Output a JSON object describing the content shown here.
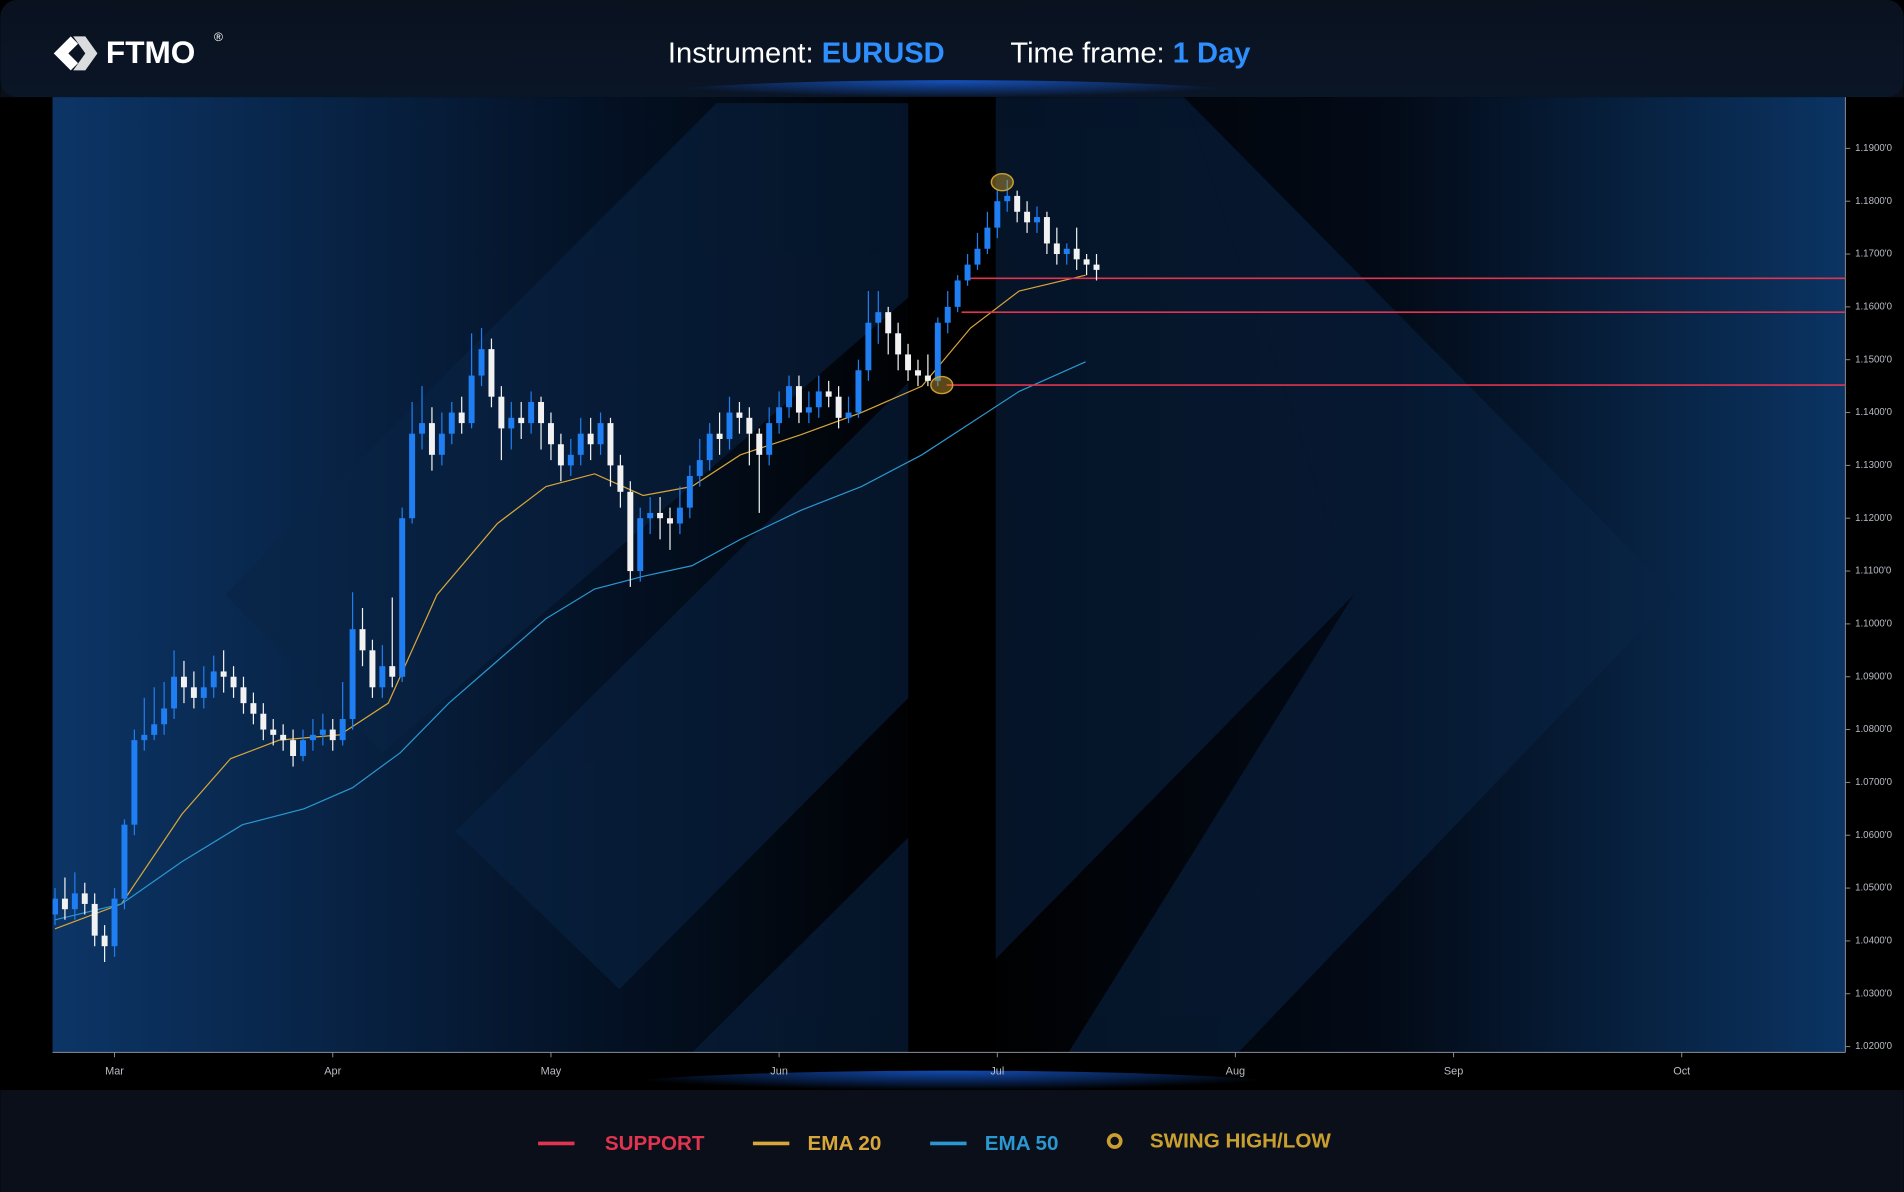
{
  "header": {
    "logo": "FTMO",
    "logo_mark": "®",
    "instrument_label": "Instrument:",
    "instrument": "EURUSD",
    "timeframe_label": "Time frame:",
    "timeframe": "1 Day"
  },
  "chart_data": {
    "type": "candlestick",
    "open": [
      1.045,
      1.048,
      1.046,
      1.049,
      1.047,
      1.041,
      1.039,
      1.048,
      1.062,
      1.078,
      1.079,
      1.081,
      1.084,
      1.09,
      1.088,
      1.086,
      1.088,
      1.091,
      1.09,
      1.088,
      1.085,
      1.083,
      1.08,
      1.079,
      1.078,
      1.075,
      1.078,
      1.079,
      1.08,
      1.078,
      1.082,
      1.099,
      1.095,
      1.088,
      1.092,
      1.09,
      1.12,
      1.136,
      1.138,
      1.132,
      1.136,
      1.14,
      1.138,
      1.147,
      1.152,
      1.143,
      1.137,
      1.139,
      1.138,
      1.142,
      1.138,
      1.134,
      1.13,
      1.132,
      1.136,
      1.134,
      1.138,
      1.13,
      1.125,
      1.11,
      1.12,
      1.121,
      1.12,
      1.119,
      1.122,
      1.128,
      1.131,
      1.136,
      1.135,
      1.14,
      1.139,
      1.136,
      1.132,
      1.138,
      1.141,
      1.145,
      1.14,
      1.141,
      1.144,
      1.143,
      1.139,
      1.14,
      1.148,
      1.157,
      1.159,
      1.155,
      1.151,
      1.148,
      1.147,
      1.146,
      1.157,
      1.16,
      1.165,
      1.168,
      1.171,
      1.175,
      1.18,
      1.181,
      1.178,
      1.176,
      1.177,
      1.172,
      1.17,
      1.171,
      1.169,
      1.168
    ],
    "high": [
      1.05,
      1.052,
      1.053,
      1.051,
      1.049,
      1.043,
      1.05,
      1.063,
      1.08,
      1.086,
      1.088,
      1.089,
      1.095,
      1.093,
      1.091,
      1.092,
      1.094,
      1.095,
      1.092,
      1.09,
      1.087,
      1.085,
      1.082,
      1.081,
      1.08,
      1.08,
      1.082,
      1.083,
      1.082,
      1.089,
      1.106,
      1.103,
      1.097,
      1.096,
      1.105,
      1.122,
      1.142,
      1.145,
      1.141,
      1.14,
      1.142,
      1.143,
      1.155,
      1.156,
      1.154,
      1.145,
      1.142,
      1.142,
      1.144,
      1.143,
      1.14,
      1.136,
      1.135,
      1.139,
      1.139,
      1.14,
      1.139,
      1.132,
      1.127,
      1.122,
      1.124,
      1.124,
      1.122,
      1.126,
      1.13,
      1.135,
      1.138,
      1.14,
      1.143,
      1.142,
      1.141,
      1.137,
      1.141,
      1.144,
      1.147,
      1.147,
      1.144,
      1.147,
      1.146,
      1.145,
      1.143,
      1.15,
      1.163,
      1.163,
      1.16,
      1.157,
      1.153,
      1.15,
      1.151,
      1.158,
      1.163,
      1.166,
      1.17,
      1.174,
      1.178,
      1.182,
      1.184,
      1.182,
      1.18,
      1.179,
      1.178,
      1.175,
      1.172,
      1.175,
      1.17,
      1.17
    ],
    "low": [
      1.043,
      1.044,
      1.044,
      1.045,
      1.039,
      1.036,
      1.037,
      1.046,
      1.06,
      1.076,
      1.078,
      1.079,
      1.082,
      1.085,
      1.084,
      1.084,
      1.086,
      1.087,
      1.086,
      1.083,
      1.081,
      1.078,
      1.077,
      1.076,
      1.073,
      1.074,
      1.076,
      1.077,
      1.076,
      1.077,
      1.08,
      1.092,
      1.086,
      1.086,
      1.088,
      1.089,
      1.119,
      1.133,
      1.129,
      1.13,
      1.134,
      1.136,
      1.137,
      1.145,
      1.141,
      1.131,
      1.133,
      1.135,
      1.136,
      1.133,
      1.131,
      1.127,
      1.128,
      1.13,
      1.131,
      1.132,
      1.126,
      1.122,
      1.107,
      1.108,
      1.117,
      1.116,
      1.114,
      1.117,
      1.12,
      1.126,
      1.129,
      1.132,
      1.133,
      1.136,
      1.13,
      1.121,
      1.13,
      1.136,
      1.139,
      1.138,
      1.138,
      1.139,
      1.141,
      1.137,
      1.138,
      1.139,
      1.146,
      1.153,
      1.151,
      1.148,
      1.146,
      1.145,
      1.145,
      1.145,
      1.155,
      1.159,
      1.164,
      1.167,
      1.17,
      1.173,
      1.178,
      1.176,
      1.174,
      1.174,
      1.17,
      1.168,
      1.168,
      1.167,
      1.166,
      1.165
    ],
    "close": [
      1.048,
      1.046,
      1.049,
      1.047,
      1.041,
      1.039,
      1.048,
      1.062,
      1.078,
      1.079,
      1.081,
      1.084,
      1.09,
      1.088,
      1.086,
      1.088,
      1.091,
      1.09,
      1.088,
      1.085,
      1.083,
      1.08,
      1.079,
      1.078,
      1.075,
      1.078,
      1.079,
      1.08,
      1.078,
      1.082,
      1.099,
      1.095,
      1.088,
      1.092,
      1.09,
      1.12,
      1.136,
      1.138,
      1.132,
      1.136,
      1.14,
      1.138,
      1.147,
      1.152,
      1.143,
      1.137,
      1.139,
      1.138,
      1.142,
      1.138,
      1.134,
      1.13,
      1.132,
      1.136,
      1.134,
      1.138,
      1.13,
      1.125,
      1.11,
      1.12,
      1.121,
      1.12,
      1.119,
      1.122,
      1.128,
      1.131,
      1.136,
      1.135,
      1.14,
      1.139,
      1.136,
      1.132,
      1.138,
      1.141,
      1.145,
      1.14,
      1.141,
      1.144,
      1.143,
      1.139,
      1.14,
      1.148,
      1.157,
      1.159,
      1.155,
      1.151,
      1.148,
      1.147,
      1.146,
      1.157,
      1.16,
      1.165,
      1.168,
      1.171,
      1.175,
      1.18,
      1.181,
      1.178,
      1.176,
      1.177,
      1.172,
      1.17,
      1.171,
      1.169,
      1.168,
      1.167
    ],
    "up_color": "#1f7ff2",
    "down_color": "#f2f2f2",
    "series": [
      {
        "name": "EMA 20",
        "color": "#d8a63a",
        "x": [
          0,
          6.7,
          12.8,
          17.7,
          22.6,
          28.7,
          33.6,
          38.5,
          44.6,
          49.5,
          54.4,
          59.3,
          64.2,
          69.1,
          75.2,
          81.3,
          87.4,
          92.3,
          97.2,
          103.9
        ],
        "values": [
          1.0423,
          1.047,
          1.064,
          1.0745,
          1.078,
          1.079,
          1.085,
          1.1055,
          1.119,
          1.126,
          1.1284,
          1.1243,
          1.126,
          1.132,
          1.1358,
          1.14,
          1.145,
          1.156,
          1.163,
          1.166
        ]
      },
      {
        "name": "EMA 50",
        "color": "#2b97d0",
        "x": [
          0,
          6.7,
          12.8,
          18.9,
          25.1,
          30,
          34.8,
          39.7,
          44.6,
          49.5,
          54.4,
          59.3,
          64.2,
          69.1,
          75.2,
          81.3,
          87.4,
          92.3,
          97.2,
          103.9
        ],
        "values": [
          1.044,
          1.047,
          1.055,
          1.062,
          1.065,
          1.069,
          1.0756,
          1.085,
          1.093,
          1.101,
          1.1066,
          1.109,
          1.111,
          1.116,
          1.1215,
          1.126,
          1.132,
          1.138,
          1.144,
          1.1496
        ]
      }
    ],
    "support": {
      "name": "SUPPORT",
      "color": "#e0344f",
      "x": [
        92.3,
        91.4,
        89.9
      ],
      "values": [
        1.1654,
        1.159,
        1.1452
      ]
    },
    "swing": {
      "name": "SWING HIGH/LOW",
      "color": "#c9a030",
      "x": [
        95.5,
        89.4
      ],
      "values": [
        1.1836,
        1.1452
      ]
    },
    "xlim": [
      -0.25,
      180.5
    ],
    "xticks": [
      {
        "value": 6,
        "label": "Mar"
      },
      {
        "value": 28,
        "label": "Apr"
      },
      {
        "value": 50,
        "label": "May"
      },
      {
        "value": 73,
        "label": "Jun"
      },
      {
        "value": 95,
        "label": "Jul"
      },
      {
        "value": 119,
        "label": "Aug"
      },
      {
        "value": 141,
        "label": "Sep"
      },
      {
        "value": 164,
        "label": "Oct"
      }
    ],
    "ylim": [
      1.0189,
      1.1997
    ],
    "yticks": [
      {
        "value": 1.02,
        "label": "1.0200'0"
      },
      {
        "value": 1.03,
        "label": "1.0300'0"
      },
      {
        "value": 1.04,
        "label": "1.0400'0"
      },
      {
        "value": 1.05,
        "label": "1.0500'0"
      },
      {
        "value": 1.06,
        "label": "1.0600'0"
      },
      {
        "value": 1.07,
        "label": "1.0700'0"
      },
      {
        "value": 1.08,
        "label": "1.0800'0"
      },
      {
        "value": 1.09,
        "label": "1.0900'0"
      },
      {
        "value": 1.1,
        "label": "1.1000'0"
      },
      {
        "value": 1.11,
        "label": "1.1100'0"
      },
      {
        "value": 1.12,
        "label": "1.1200'0"
      },
      {
        "value": 1.13,
        "label": "1.1300'0"
      },
      {
        "value": 1.14,
        "label": "1.1400'0"
      },
      {
        "value": 1.15,
        "label": "1.1500'0"
      },
      {
        "value": 1.16,
        "label": "1.1600'0"
      },
      {
        "value": 1.17,
        "label": "1.1700'0"
      },
      {
        "value": 1.18,
        "label": "1.1800'0"
      },
      {
        "value": 1.19,
        "label": "1.1900'0"
      }
    ]
  }
}
